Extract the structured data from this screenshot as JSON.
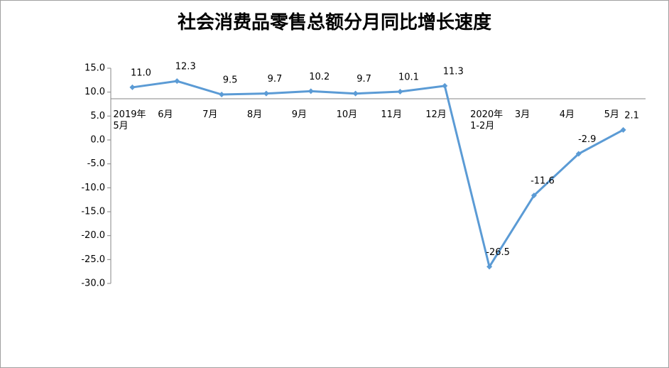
{
  "chart_data": {
    "type": "line",
    "title": "社会消费品零售总额分月同比增长速度",
    "categories": [
      "2019年\n5月",
      "6月",
      "7月",
      "8月",
      "9月",
      "10月",
      "11月",
      "12月",
      "2020年\n1-2月",
      "3月",
      "4月",
      "5月"
    ],
    "series": [
      {
        "name": "社会消费品零售总额分月同比增长速度",
        "color": "#5b9bd5",
        "values": [
          11.0,
          12.3,
          9.5,
          9.7,
          10.2,
          9.7,
          10.1,
          11.3,
          -26.5,
          -11.6,
          -2.9,
          2.1
        ],
        "value_labels": [
          "11.0",
          "12.3",
          "9.5",
          "9.7",
          "10.2",
          "9.7",
          "10.1",
          "11.3",
          "-26.5",
          "-11.6",
          "-2.9",
          "2.1"
        ]
      }
    ],
    "ylim": [
      -30,
      15
    ],
    "yticks": [
      {
        "value": 15,
        "label": "15.0"
      },
      {
        "value": 10,
        "label": "10.0"
      },
      {
        "value": 5,
        "label": "5.0"
      },
      {
        "value": 0,
        "label": "0.0"
      },
      {
        "value": -5,
        "label": "-5.0"
      },
      {
        "value": -10,
        "label": "-10.0"
      },
      {
        "value": -15,
        "label": "-15.0"
      },
      {
        "value": -20,
        "label": "-20.0"
      },
      {
        "value": -25,
        "label": "-25.0"
      },
      {
        "value": -30,
        "label": "-30.0"
      }
    ],
    "grid": false
  }
}
